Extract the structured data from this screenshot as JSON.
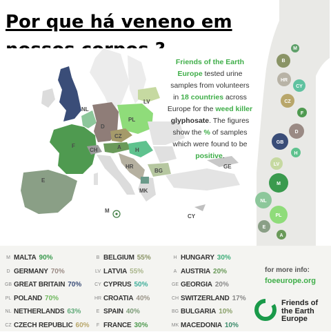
{
  "headline": {
    "line1": "Por que há veneno em",
    "line2": "nossos corpos ?"
  },
  "intro": {
    "org": "Friends of the Earth Europe",
    "part1": "tested urine samples from volunteers in",
    "count": "18 countries",
    "part2": "across Europe for the",
    "weedkiller": "weed killer",
    "glyph": "glyphosate",
    "part3": ". The figures show the",
    "pctsym": "%",
    "part4": "of samples which were found to be",
    "positive": "positive",
    "end": "."
  },
  "map_labels": [
    {
      "code": "NL"
    },
    {
      "code": "D"
    },
    {
      "code": "CZ"
    },
    {
      "code": "PL"
    },
    {
      "code": "LV"
    },
    {
      "code": "F"
    },
    {
      "code": "CH"
    },
    {
      "code": "A"
    },
    {
      "code": "H"
    },
    {
      "code": "HR"
    },
    {
      "code": "BG"
    },
    {
      "code": "E"
    },
    {
      "code": "MK"
    },
    {
      "code": "GE"
    },
    {
      "code": "M"
    },
    {
      "code": "CY"
    }
  ],
  "body_bubbles": [
    {
      "code": "M"
    },
    {
      "code": "B"
    },
    {
      "code": "HR"
    },
    {
      "code": "CY"
    },
    {
      "code": "CZ"
    },
    {
      "code": "F"
    },
    {
      "code": "D"
    },
    {
      "code": "GB"
    },
    {
      "code": "H"
    },
    {
      "code": "LV"
    },
    {
      "code": "M"
    },
    {
      "code": "NL"
    },
    {
      "code": "PL"
    },
    {
      "code": "E"
    },
    {
      "code": "A"
    }
  ],
  "legend": {
    "col1": [
      {
        "code": "M",
        "country": "MALTA",
        "pct": "90%"
      },
      {
        "code": "D",
        "country": "GERMANY",
        "pct": "70%"
      },
      {
        "code": "GB",
        "country": "GREAT BRITAIN",
        "pct": "70%"
      },
      {
        "code": "PL",
        "country": "POLAND",
        "pct": "70%"
      },
      {
        "code": "NL",
        "country": "NETHERLANDS",
        "pct": "63%"
      },
      {
        "code": "CZ",
        "country": "CZECH REPUBLIC",
        "pct": "60%"
      }
    ],
    "col2": [
      {
        "code": "B",
        "country": "BELGIUM",
        "pct": "55%"
      },
      {
        "code": "LV",
        "country": "LATVIA",
        "pct": "55%"
      },
      {
        "code": "CY",
        "country": "CYPRUS",
        "pct": "50%"
      },
      {
        "code": "HR",
        "country": "CROATIA",
        "pct": "40%"
      },
      {
        "code": "E",
        "country": "SPAIN",
        "pct": "40%"
      },
      {
        "code": "F",
        "country": "FRANCE",
        "pct": "30%"
      }
    ],
    "col3": [
      {
        "code": "H",
        "country": "HUNGARY",
        "pct": "30%"
      },
      {
        "code": "A",
        "country": "AUSTRIA",
        "pct": "20%"
      },
      {
        "code": "GE",
        "country": "GEORGIA",
        "pct": "20%"
      },
      {
        "code": "CH",
        "country": "SWITZERLAND",
        "pct": "17%"
      },
      {
        "code": "BG",
        "country": "BULGARIA",
        "pct": "10%"
      },
      {
        "code": "MK",
        "country": "MACEDONIA",
        "pct": "10%"
      }
    ]
  },
  "info": {
    "label": "for more info:",
    "url": "foeeurope.org"
  },
  "logo": {
    "line1": "Friends of",
    "line2": "the Earth",
    "line3": "Europe"
  },
  "colors": {
    "green": "#3fae49",
    "dark_green": "#3a7a3e",
    "grey_body": "#e9e9e6",
    "legend_bg": "#f4f4f1"
  }
}
